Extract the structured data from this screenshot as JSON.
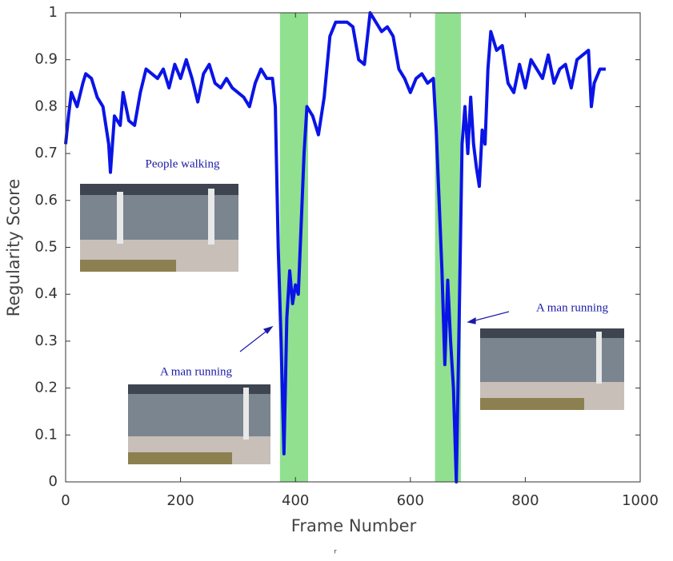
{
  "chart_data": {
    "type": "line",
    "x_label": "Frame Number",
    "y_label": "Regularity Score",
    "xlim": [
      0,
      1000
    ],
    "xticks": [
      0,
      200,
      400,
      600,
      800,
      1000
    ],
    "ylim": [
      0,
      1
    ],
    "yticks": [
      0,
      0.1,
      0.2,
      0.3,
      0.4,
      0.5,
      0.6,
      0.7,
      0.8,
      0.9,
      1
    ],
    "highlight_color": "#90e090",
    "highlights": [
      [
        373,
        422
      ],
      [
        643,
        688
      ]
    ],
    "annotations": [
      "People walking",
      "A man running",
      "A man running"
    ],
    "footnote": "r",
    "series": [
      {
        "name": "Regularity Score",
        "color": "#0a14e6",
        "x": [
          0,
          5,
          10,
          20,
          30,
          35,
          45,
          55,
          65,
          75,
          78,
          85,
          95,
          100,
          110,
          120,
          130,
          140,
          150,
          160,
          170,
          180,
          190,
          200,
          210,
          220,
          230,
          240,
          250,
          260,
          270,
          280,
          290,
          300,
          310,
          320,
          330,
          340,
          350,
          360,
          365,
          370,
          375,
          380,
          385,
          390,
          395,
          400,
          405,
          410,
          415,
          420,
          430,
          440,
          450,
          460,
          470,
          480,
          490,
          500,
          510,
          520,
          530,
          540,
          550,
          560,
          570,
          580,
          590,
          600,
          610,
          620,
          630,
          640,
          645,
          650,
          655,
          660,
          665,
          670,
          675,
          680,
          685,
          690,
          695,
          700,
          705,
          710,
          715,
          720,
          725,
          730,
          735,
          740,
          750,
          760,
          770,
          780,
          790,
          800,
          810,
          820,
          830,
          840,
          850,
          860,
          870,
          880,
          890,
          900,
          910,
          915,
          920,
          930,
          940
        ],
        "values": [
          0.72,
          0.78,
          0.83,
          0.8,
          0.85,
          0.87,
          0.86,
          0.82,
          0.8,
          0.72,
          0.66,
          0.78,
          0.76,
          0.83,
          0.77,
          0.76,
          0.83,
          0.88,
          0.87,
          0.86,
          0.88,
          0.84,
          0.89,
          0.86,
          0.9,
          0.86,
          0.81,
          0.87,
          0.89,
          0.85,
          0.84,
          0.86,
          0.84,
          0.83,
          0.82,
          0.8,
          0.85,
          0.88,
          0.86,
          0.86,
          0.8,
          0.5,
          0.3,
          0.06,
          0.35,
          0.45,
          0.38,
          0.42,
          0.4,
          0.55,
          0.7,
          0.8,
          0.78,
          0.74,
          0.82,
          0.95,
          0.98,
          0.98,
          0.98,
          0.97,
          0.9,
          0.89,
          1.0,
          0.98,
          0.96,
          0.97,
          0.95,
          0.88,
          0.86,
          0.83,
          0.86,
          0.87,
          0.85,
          0.86,
          0.75,
          0.6,
          0.45,
          0.25,
          0.43,
          0.3,
          0.2,
          0.0,
          0.35,
          0.72,
          0.8,
          0.7,
          0.82,
          0.72,
          0.67,
          0.63,
          0.75,
          0.72,
          0.88,
          0.96,
          0.92,
          0.93,
          0.85,
          0.83,
          0.89,
          0.84,
          0.9,
          0.88,
          0.86,
          0.91,
          0.85,
          0.88,
          0.89,
          0.84,
          0.9,
          0.91,
          0.92,
          0.8,
          0.85,
          0.88,
          0.88
        ]
      }
    ]
  }
}
